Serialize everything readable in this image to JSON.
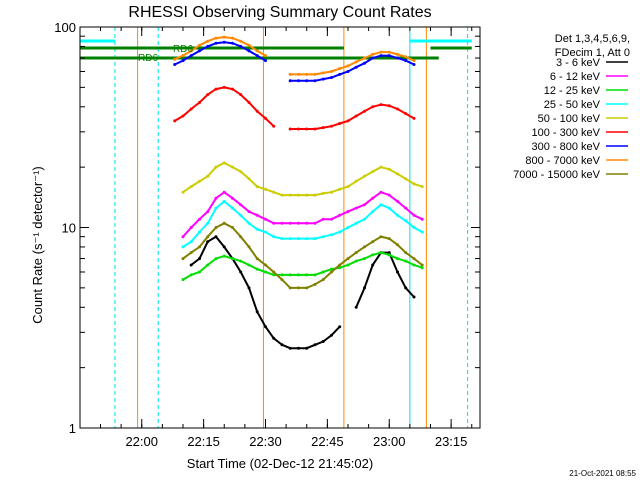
{
  "chart_data": {
    "type": "line",
    "title": "RHESSI Observing Summary Count Rates",
    "xlabel": "Start Time (02-Dec-12 21:45:02)",
    "ylabel": "Count Rate (s⁻¹ detector⁻¹)",
    "yscale": "log",
    "ylim": [
      1,
      100
    ],
    "xlim": [
      "21:45:02",
      "23:22:00"
    ],
    "x_ticks": [
      "22:00",
      "22:15",
      "22:30",
      "22:45",
      "23:00",
      "23:15"
    ],
    "y_ticks": [
      "1",
      "10",
      "100"
    ],
    "grid": false,
    "legend_position": "top-right outside",
    "legend_header": [
      "Det 1,3,4,5,6,9,",
      "FDecim 1, Att 0"
    ],
    "timestamp": "21-Oct-2021 08:55",
    "annotations": [
      "RD6",
      "RD6"
    ],
    "x": [
      "21:56:00",
      "21:58:00",
      "22:00:00",
      "22:02:00",
      "22:04:00",
      "22:06:00",
      "22:08:00",
      "22:10:00",
      "22:12:00",
      "22:14:00",
      "22:16:00",
      "22:18:00",
      "22:20:00",
      "22:22:00",
      "22:24:00",
      "22:26:00",
      "22:28:00",
      "22:30:00",
      "22:32:00",
      "22:34:00",
      "22:36:00",
      "22:38:00",
      "22:40:00",
      "22:42:00",
      "22:44:00",
      "22:46:00",
      "22:48:00",
      "22:50:00",
      "22:52:00",
      "22:54:00",
      "22:56:00",
      "22:58:00",
      "23:00:00",
      "23:02:00",
      "23:04:00",
      "23:06:00",
      "23:08:00"
    ],
    "series": [
      {
        "name": "3 - 6 keV",
        "color": "#000000",
        "values": [
          null,
          null,
          null,
          null,
          null,
          null,
          null,
          null,
          6.5,
          7,
          8.5,
          9,
          8,
          7,
          6,
          5,
          3.8,
          3.2,
          2.8,
          2.6,
          2.5,
          2.5,
          2.5,
          2.6,
          2.7,
          2.9,
          3.2,
          null,
          4,
          5,
          6.5,
          7.5,
          7.5,
          6,
          5,
          4.5,
          null
        ]
      },
      {
        "name": "6 - 12 keV",
        "color": "#ff00ff",
        "values": [
          null,
          null,
          null,
          null,
          null,
          null,
          null,
          9,
          10,
          11,
          12,
          14,
          15,
          14,
          13,
          12,
          11.5,
          11,
          10.5,
          10.5,
          10.5,
          10.5,
          10.5,
          10.5,
          11,
          11,
          11.5,
          12,
          12.5,
          13,
          14,
          15,
          14.5,
          13.5,
          12.5,
          11.5,
          11
        ]
      },
      {
        "name": "12 - 25 keV",
        "color": "#00dd00",
        "values": [
          null,
          null,
          null,
          null,
          null,
          null,
          null,
          5.5,
          5.8,
          6,
          6.5,
          7,
          7.2,
          7,
          6.8,
          6.5,
          6.2,
          6,
          5.8,
          5.8,
          5.8,
          5.8,
          5.8,
          5.8,
          6,
          6.2,
          6.3,
          6.5,
          6.8,
          7,
          7.3,
          7.5,
          7.3,
          7,
          6.8,
          6.5,
          6.3
        ]
      },
      {
        "name": "25 - 50 keV",
        "color": "#00ffff",
        "values": [
          null,
          null,
          null,
          null,
          null,
          null,
          null,
          8,
          8.5,
          9.5,
          10.5,
          12.5,
          13.5,
          12.5,
          11.5,
          10.5,
          9.8,
          9.5,
          9,
          8.8,
          8.8,
          8.8,
          8.8,
          8.8,
          9,
          9.2,
          9.5,
          10,
          10.5,
          11,
          12,
          13,
          12.5,
          11.5,
          10.8,
          10,
          9.5
        ]
      },
      {
        "name": "50 - 100 keV",
        "color": "#cccc00",
        "values": [
          null,
          null,
          null,
          null,
          null,
          null,
          null,
          15,
          16,
          17,
          18,
          20,
          21,
          20,
          19,
          17.5,
          16,
          15.5,
          15,
          14.5,
          14.5,
          14.5,
          14.5,
          14.5,
          14.8,
          15,
          15.5,
          16,
          17,
          18,
          19,
          20,
          19.5,
          18.5,
          17.5,
          16.5,
          16
        ]
      },
      {
        "name": "100 - 300 keV",
        "color": "#ff0000",
        "values": [
          null,
          null,
          null,
          null,
          null,
          null,
          34,
          36,
          39,
          42,
          46,
          49,
          50,
          49,
          46,
          42,
          38,
          35,
          32,
          null,
          31,
          31,
          31,
          31,
          31.5,
          32,
          33,
          34,
          36,
          38,
          40,
          41,
          40.5,
          39,
          37,
          35,
          null
        ]
      },
      {
        "name": "300 - 800 keV",
        "color": "#0000ff",
        "values": [
          null,
          null,
          null,
          null,
          null,
          null,
          65,
          68,
          72,
          76,
          80,
          83,
          84,
          83,
          80,
          76,
          72,
          68,
          null,
          null,
          54,
          54,
          54,
          54,
          55,
          56,
          58,
          60,
          63,
          66,
          70,
          72,
          72,
          70,
          68,
          65,
          null
        ]
      },
      {
        "name": "800 - 7000 keV",
        "color": "#ff8800",
        "values": [
          null,
          null,
          null,
          null,
          null,
          null,
          69,
          72,
          76,
          81,
          85,
          88,
          89,
          88,
          85,
          81,
          76,
          72,
          null,
          null,
          58,
          58,
          58,
          58,
          59,
          60,
          62,
          64,
          67,
          70,
          73,
          75,
          75,
          73,
          71,
          68,
          null
        ]
      },
      {
        "name": "7000 - 15000 keV",
        "color": "#808000",
        "values": [
          null,
          null,
          null,
          null,
          null,
          null,
          null,
          7,
          7.5,
          8,
          9,
          10,
          10.5,
          10,
          9,
          8,
          7,
          6.5,
          6,
          5.5,
          5,
          5,
          5,
          5.2,
          5.5,
          6,
          6.5,
          7,
          7.5,
          8,
          8.5,
          9,
          8.8,
          8.2,
          7.5,
          7,
          6.5
        ]
      }
    ]
  }
}
